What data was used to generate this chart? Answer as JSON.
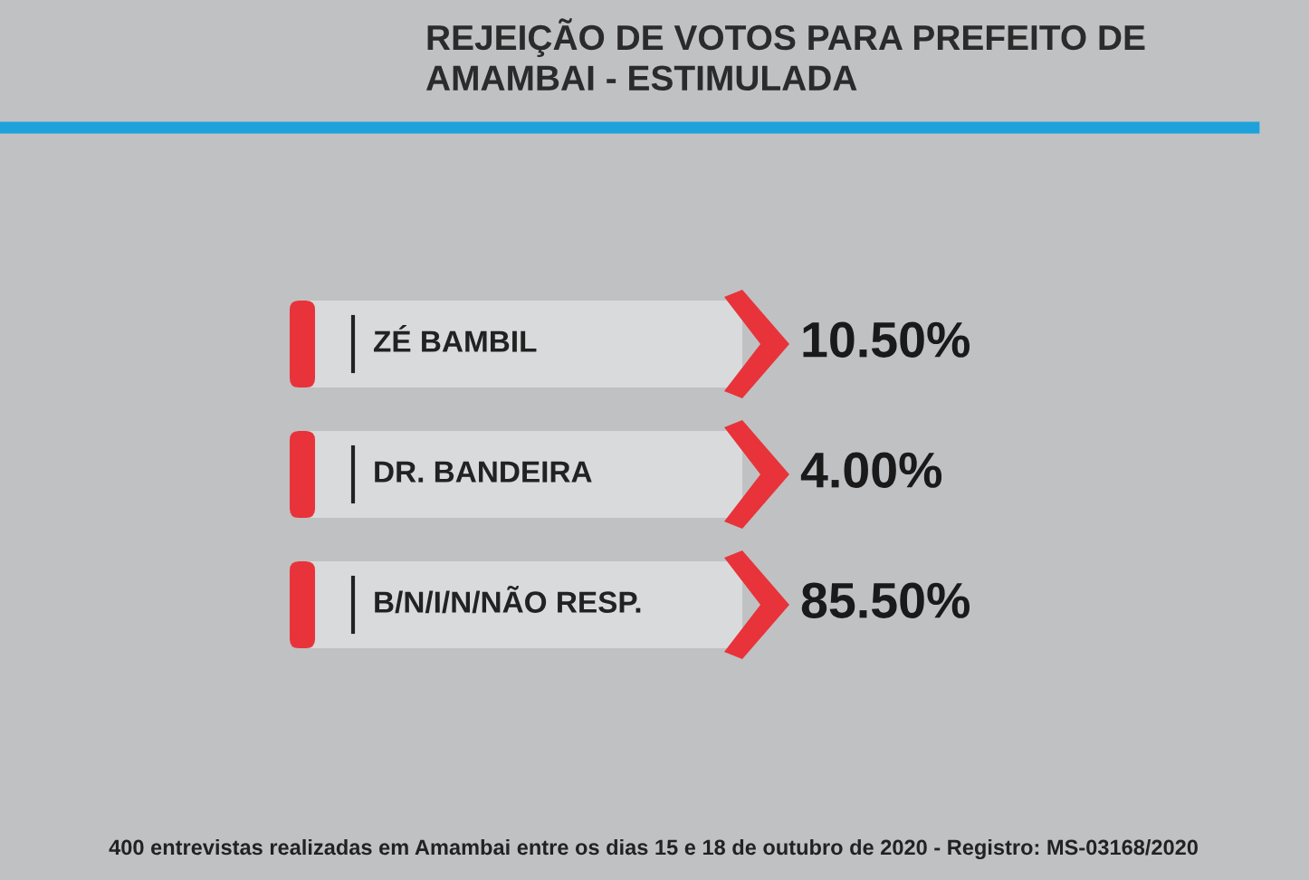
{
  "chart_data": {
    "type": "other",
    "title": "REJEIÇÃO DE VOTOS PARA PREFEITO DE\nAMAMBAI - ESTIMULADA",
    "categories": [
      "ZÉ BAMBIL",
      "DR. BANDEIRA",
      "B/N/I/N/NÃO RESP."
    ],
    "values": [
      10.5,
      4.0,
      85.5
    ],
    "value_labels": [
      "10.50%",
      "4.00%",
      "85.50%"
    ],
    "color": "#e8333a",
    "annotations": [
      "400 entrevistas realizadas em Amambai entre os dias 15 e 18 de outubro de 2020 - Registro: MS-03168/2020"
    ]
  }
}
